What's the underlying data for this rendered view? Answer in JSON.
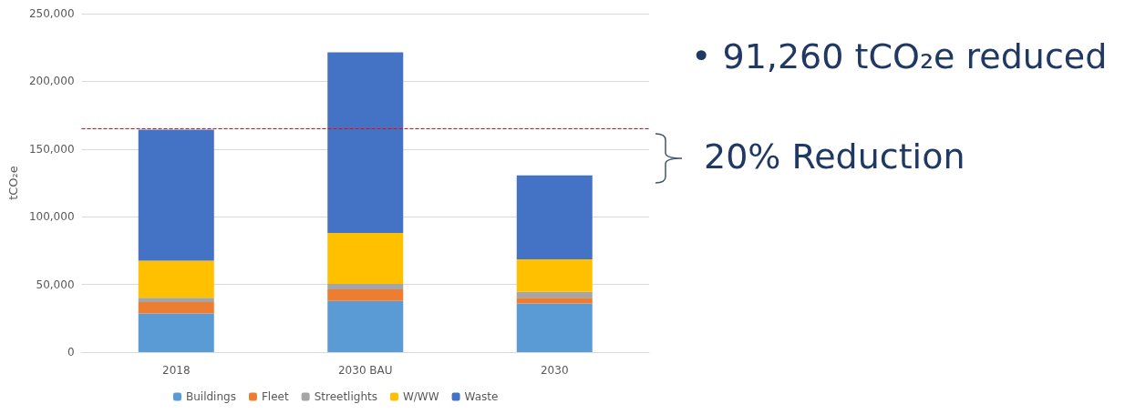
{
  "chart_data": {
    "type": "bar",
    "stacked": true,
    "ylabel": "tCO₂e",
    "categories": [
      "2018",
      "2030 BAU",
      "2030"
    ],
    "series": [
      {
        "name": "Buildings",
        "color": "#5b9bd5",
        "values": [
          28600,
          37800,
          35900
        ]
      },
      {
        "name": "Fleet",
        "color": "#ed7d31",
        "values": [
          8300,
          8600,
          4300
        ]
      },
      {
        "name": "Streetlights",
        "color": "#a5a5a5",
        "values": [
          3300,
          4000,
          4300
        ]
      },
      {
        "name": "W/WW",
        "color": "#ffc000",
        "values": [
          27400,
          37700,
          24000
        ]
      },
      {
        "name": "Waste",
        "color": "#4472c4",
        "values": [
          96700,
          133300,
          62000
        ]
      }
    ],
    "ylim": [
      0,
      250000
    ],
    "yticks": [
      0,
      {
        "value": 50000,
        "label": "50,000"
      },
      {
        "value": 100000,
        "label": "100,000"
      },
      {
        "value": 150000,
        "label": "150,000"
      },
      {
        "value": 200000,
        "label": "200,000"
      },
      {
        "value": 250000,
        "label": "250,000"
      }
    ],
    "grid": "y",
    "legend": "bottom",
    "ref_lines": [
      {
        "axis": "y",
        "value": 165000,
        "color": "#ff0000",
        "line_style": "dashed"
      }
    ],
    "annotations": [
      "• 91,260 tCO₂e reduced",
      "20% Reduction"
    ]
  }
}
